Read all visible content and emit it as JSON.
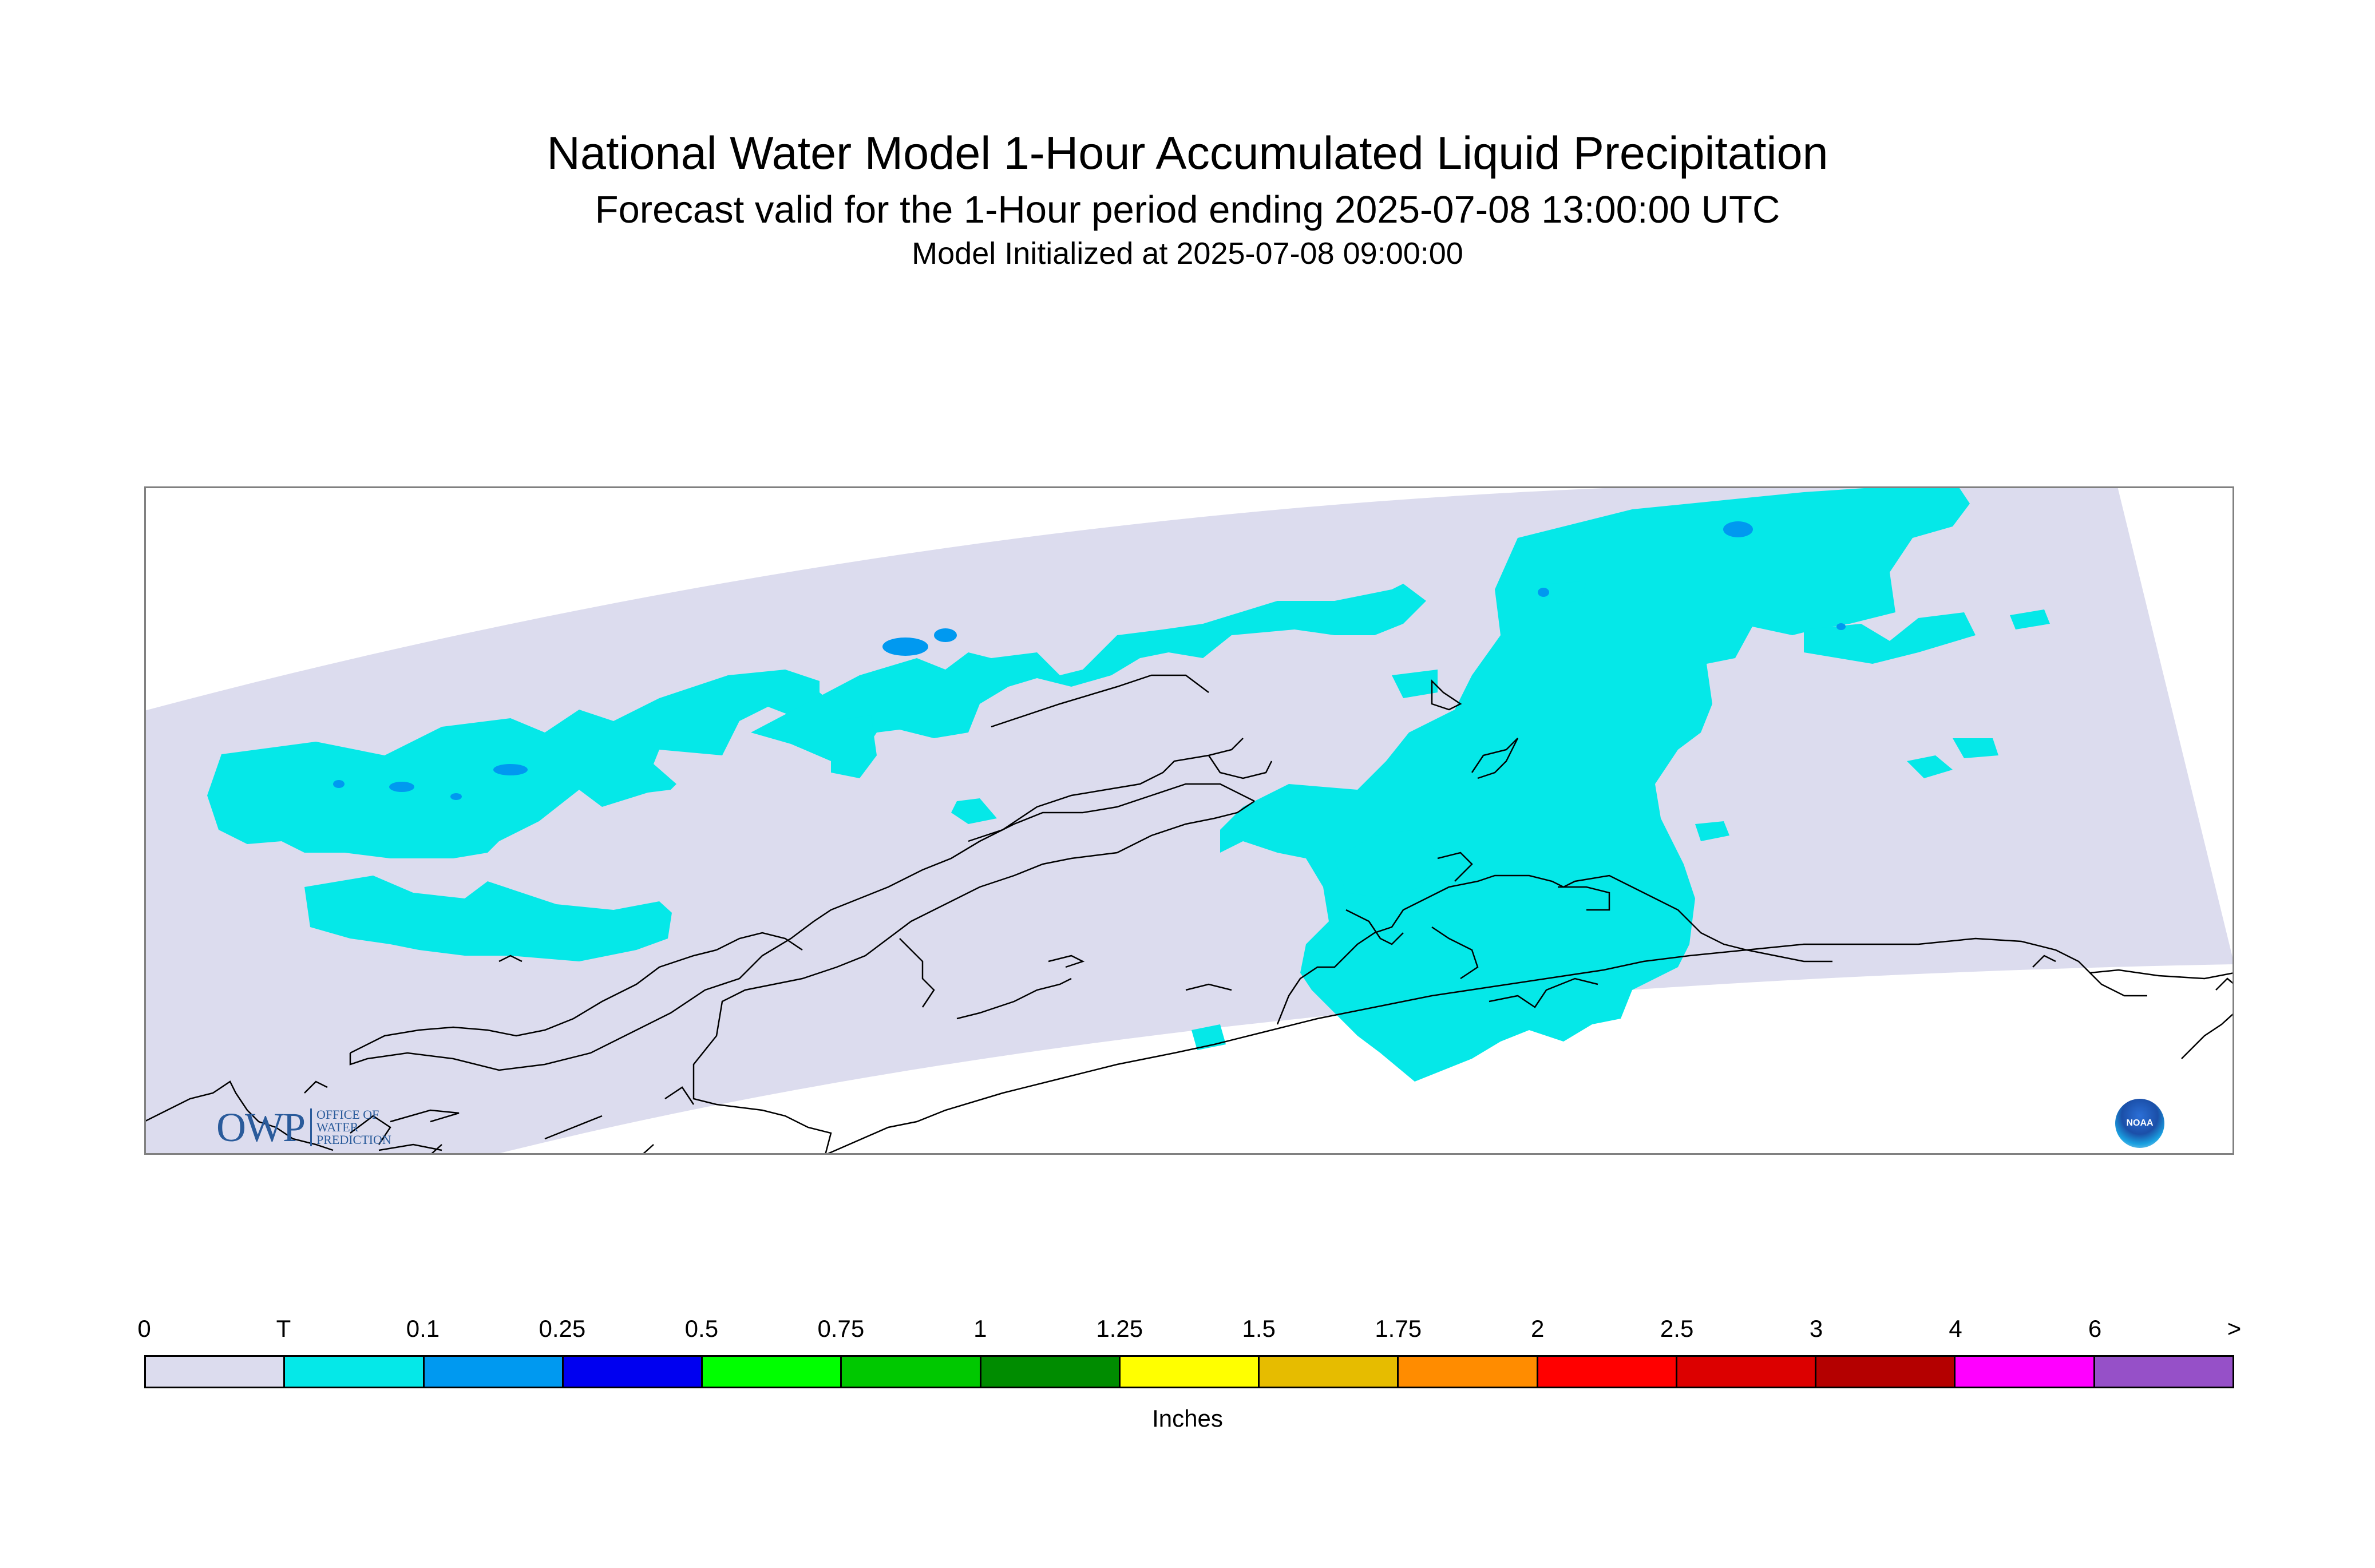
{
  "title": "National Water Model 1-Hour Accumulated Liquid Precipitation",
  "subtitle": "Forecast valid for the 1-Hour period ending 2025-07-08 13:00:00 UTC",
  "init_line": "Model Initialized at 2025-07-08 09:00:00",
  "legend": {
    "labels": [
      "0",
      "T",
      "0.1",
      "0.25",
      "0.5",
      "0.75",
      "1",
      "1.25",
      "1.5",
      "1.75",
      "2",
      "2.5",
      "3",
      "4",
      "6",
      ">"
    ],
    "colors": [
      "#dcdcee",
      "#05e8e8",
      "#0099f0",
      "#0000f0",
      "#00ff00",
      "#00c800",
      "#008c00",
      "#ffff00",
      "#e6bc00",
      "#ff8c00",
      "#ff0000",
      "#dc0000",
      "#b40000",
      "#ff00ff",
      "#9650c8"
    ],
    "units": "Inches"
  },
  "colors": {
    "domain_fill": "#dcdcee",
    "trace_precip": "#05e8e8",
    "light_precip": "#0099f0",
    "coastline": "#000000"
  },
  "logos": {
    "owp_mark": "OWP",
    "owp_lines": [
      "OFFICE OF",
      "WATER",
      "PREDICTION"
    ],
    "noaa_text": "NOAA"
  }
}
